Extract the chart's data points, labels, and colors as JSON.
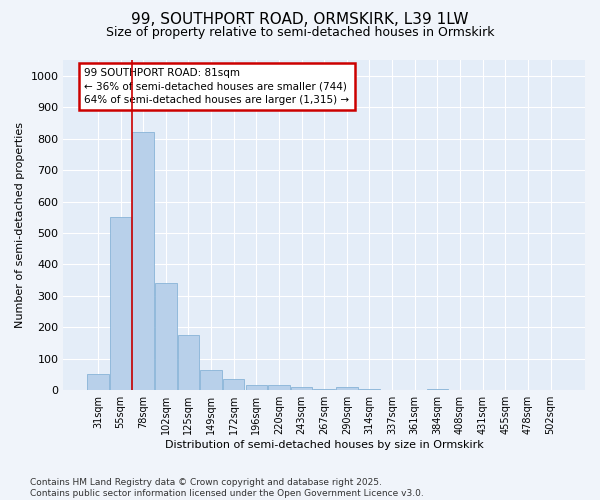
{
  "title_line1": "99, SOUTHPORT ROAD, ORMSKIRK, L39 1LW",
  "title_line2": "Size of property relative to semi-detached houses in Ormskirk",
  "xlabel": "Distribution of semi-detached houses by size in Ormskirk",
  "ylabel": "Number of semi-detached properties",
  "categories": [
    "31sqm",
    "55sqm",
    "78sqm",
    "102sqm",
    "125sqm",
    "149sqm",
    "172sqm",
    "196sqm",
    "220sqm",
    "243sqm",
    "267sqm",
    "290sqm",
    "314sqm",
    "337sqm",
    "361sqm",
    "384sqm",
    "408sqm",
    "431sqm",
    "455sqm",
    "478sqm",
    "502sqm"
  ],
  "values": [
    50,
    550,
    820,
    340,
    175,
    65,
    35,
    15,
    15,
    10,
    5,
    10,
    5,
    0,
    0,
    5,
    0,
    0,
    0,
    0,
    0
  ],
  "bar_color": "#b8d0ea",
  "bar_edge_color": "#88b4d8",
  "vline_color": "#cc0000",
  "annotation_title": "99 SOUTHPORT ROAD: 81sqm",
  "annotation_line2": "← 36% of semi-detached houses are smaller (744)",
  "annotation_line3": "64% of semi-detached houses are larger (1,315) →",
  "annotation_box_color": "#cc0000",
  "ylim": [
    0,
    1050
  ],
  "yticks": [
    0,
    100,
    200,
    300,
    400,
    500,
    600,
    700,
    800,
    900,
    1000
  ],
  "footer_line1": "Contains HM Land Registry data © Crown copyright and database right 2025.",
  "footer_line2": "Contains public sector information licensed under the Open Government Licence v3.0.",
  "bg_color": "#f0f4fa",
  "plot_bg_color": "#e4edf8"
}
